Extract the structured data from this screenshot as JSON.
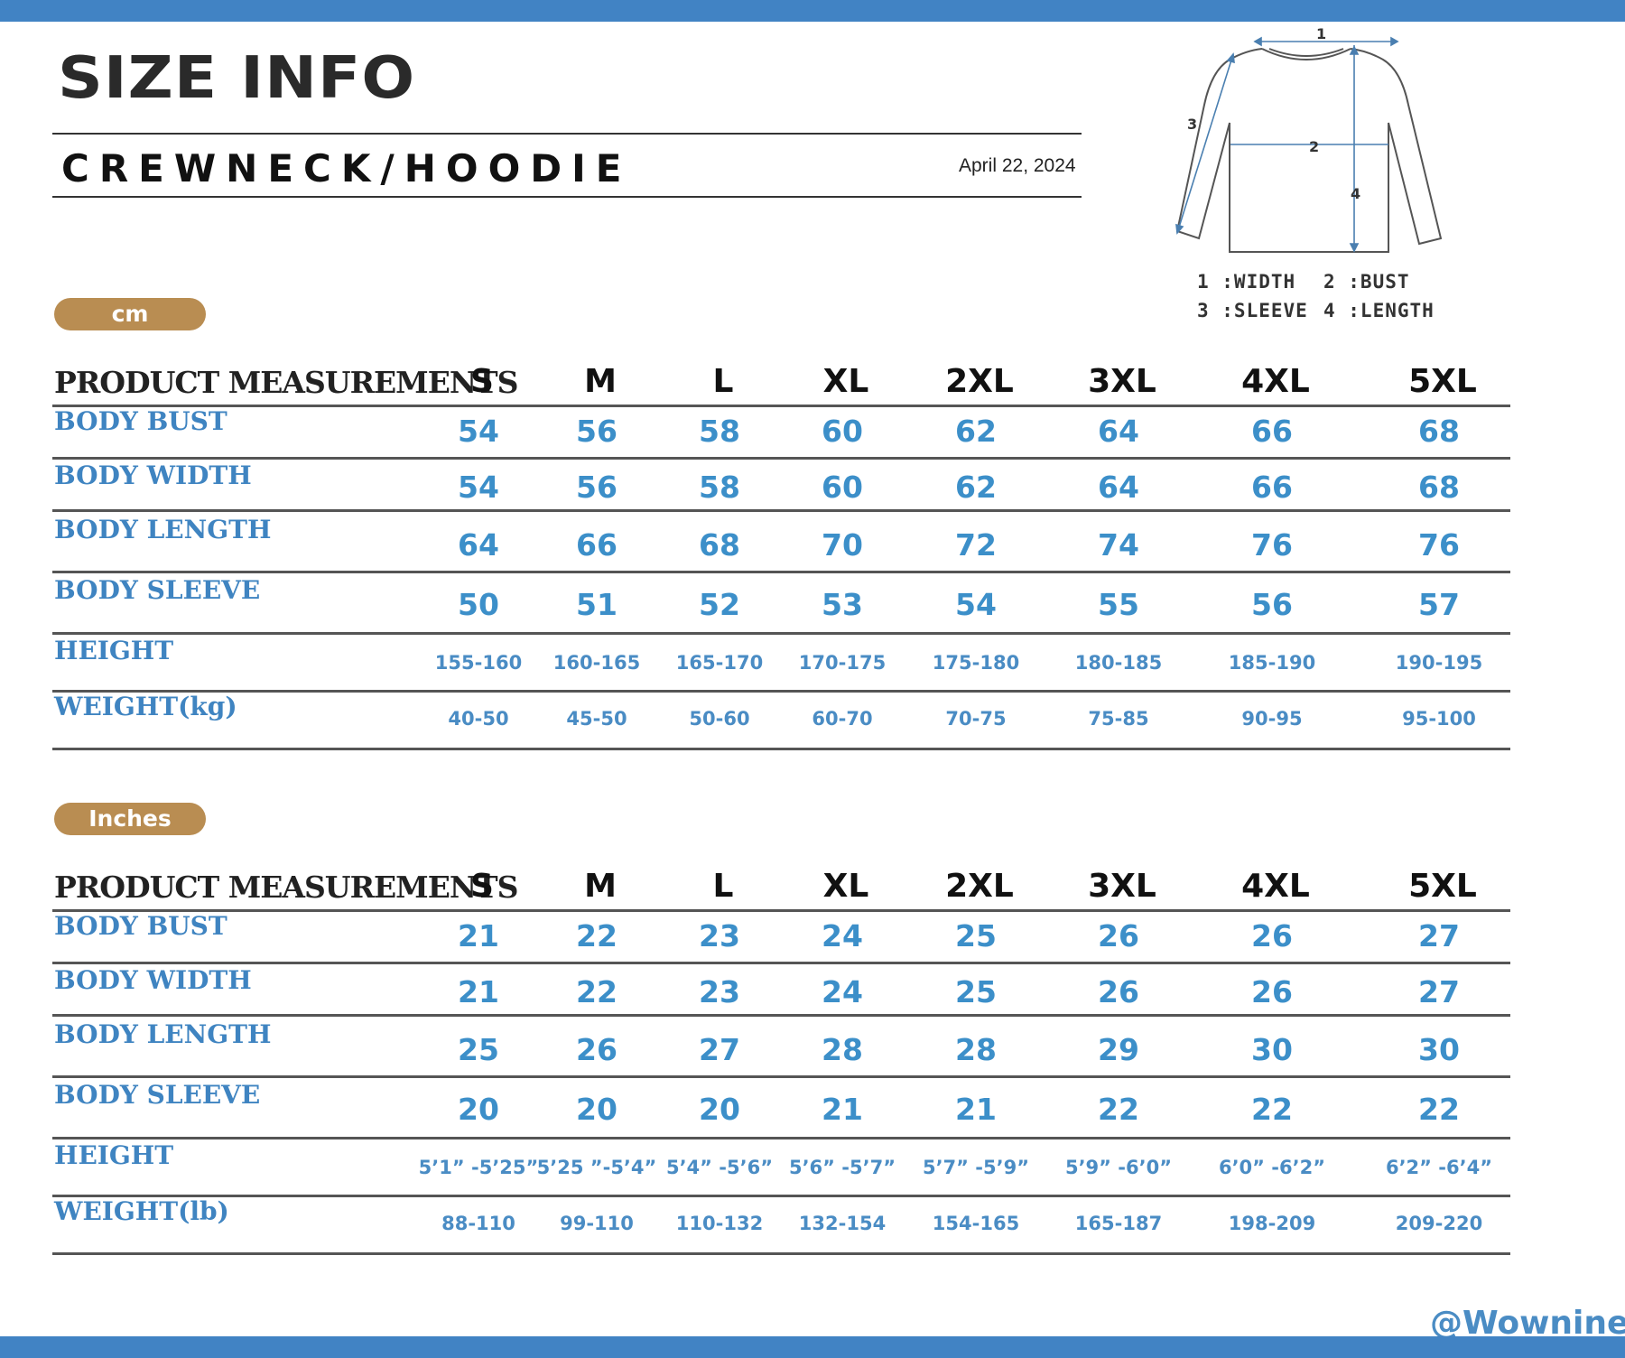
{
  "title": "SIZE INFO",
  "subtitle": "CREWNECK/HOODIE",
  "date": "April 22, 2024",
  "diagram": {
    "markers": [
      "1",
      "2",
      "3",
      "4"
    ],
    "legend": [
      "1 :WIDTH",
      "2 :BUST",
      "3 :SLEEVE",
      "4 :LENGTH"
    ]
  },
  "sizes": [
    "S",
    "M",
    "L",
    "XL",
    "2XL",
    "3XL",
    "4XL",
    "5XL"
  ],
  "tables": [
    {
      "unit": "cm",
      "header": "PRODUCT MEASUREMENTS",
      "rows": [
        {
          "label": "BODY BUST",
          "style": "big",
          "values": [
            "54",
            "56",
            "58",
            "60",
            "62",
            "64",
            "66",
            "68"
          ]
        },
        {
          "label": "BODY WIDTH",
          "style": "big",
          "values": [
            "54",
            "56",
            "58",
            "60",
            "62",
            "64",
            "66",
            "68"
          ]
        },
        {
          "label": "BODY LENGTH",
          "style": "big",
          "values": [
            "64",
            "66",
            "68",
            "70",
            "72",
            "74",
            "76",
            "76"
          ]
        },
        {
          "label": "BODY SLEEVE",
          "style": "big",
          "values": [
            "50",
            "51",
            "52",
            "53",
            "54",
            "55",
            "56",
            "57"
          ]
        },
        {
          "label": "HEIGHT",
          "style": "small",
          "values": [
            "155-160",
            "160-165",
            "165-170",
            "170-175",
            "175-180",
            "180-185",
            "185-190",
            "190-195"
          ]
        },
        {
          "label": "WEIGHT(kg)",
          "style": "small",
          "values": [
            "40-50",
            "45-50",
            "50-60",
            "60-70",
            "70-75",
            "75-85",
            "90-95",
            "95-100"
          ]
        }
      ]
    },
    {
      "unit": "Inches",
      "header": "PRODUCT MEASUREMENTS",
      "rows": [
        {
          "label": "BODY BUST",
          "style": "big",
          "values": [
            "21",
            "22",
            "23",
            "24",
            "25",
            "26",
            "26",
            "27"
          ]
        },
        {
          "label": "BODY WIDTH",
          "style": "big",
          "values": [
            "21",
            "22",
            "23",
            "24",
            "25",
            "26",
            "26",
            "27"
          ]
        },
        {
          "label": "BODY LENGTH",
          "style": "big",
          "values": [
            "25",
            "26",
            "27",
            "28",
            "28",
            "29",
            "30",
            "30"
          ]
        },
        {
          "label": "BODY SLEEVE",
          "style": "big",
          "values": [
            "20",
            "20",
            "20",
            "21",
            "21",
            "22",
            "22",
            "22"
          ]
        },
        {
          "label": "HEIGHT",
          "style": "small",
          "values": [
            "5’1” -5’25”",
            "5’25 ”-5’4”",
            "5’4” -5’6”",
            "5’6” -5’7”",
            "5’7” -5’9”",
            "5’9” -6’0”",
            "6’0” -6’2”",
            "6’2” -6’4”"
          ]
        },
        {
          "label": "WEIGHT(lb)",
          "style": "small",
          "values": [
            "88-110",
            "99-110",
            "110-132",
            "132-154",
            "154-165",
            "165-187",
            "198-209",
            "209-220"
          ]
        }
      ]
    }
  ],
  "watermark": "@Wownine",
  "colors": {
    "accent_bar": "#4183c4",
    "value_blue": "#3c8fc9",
    "unit_pill": "#b98d52"
  }
}
